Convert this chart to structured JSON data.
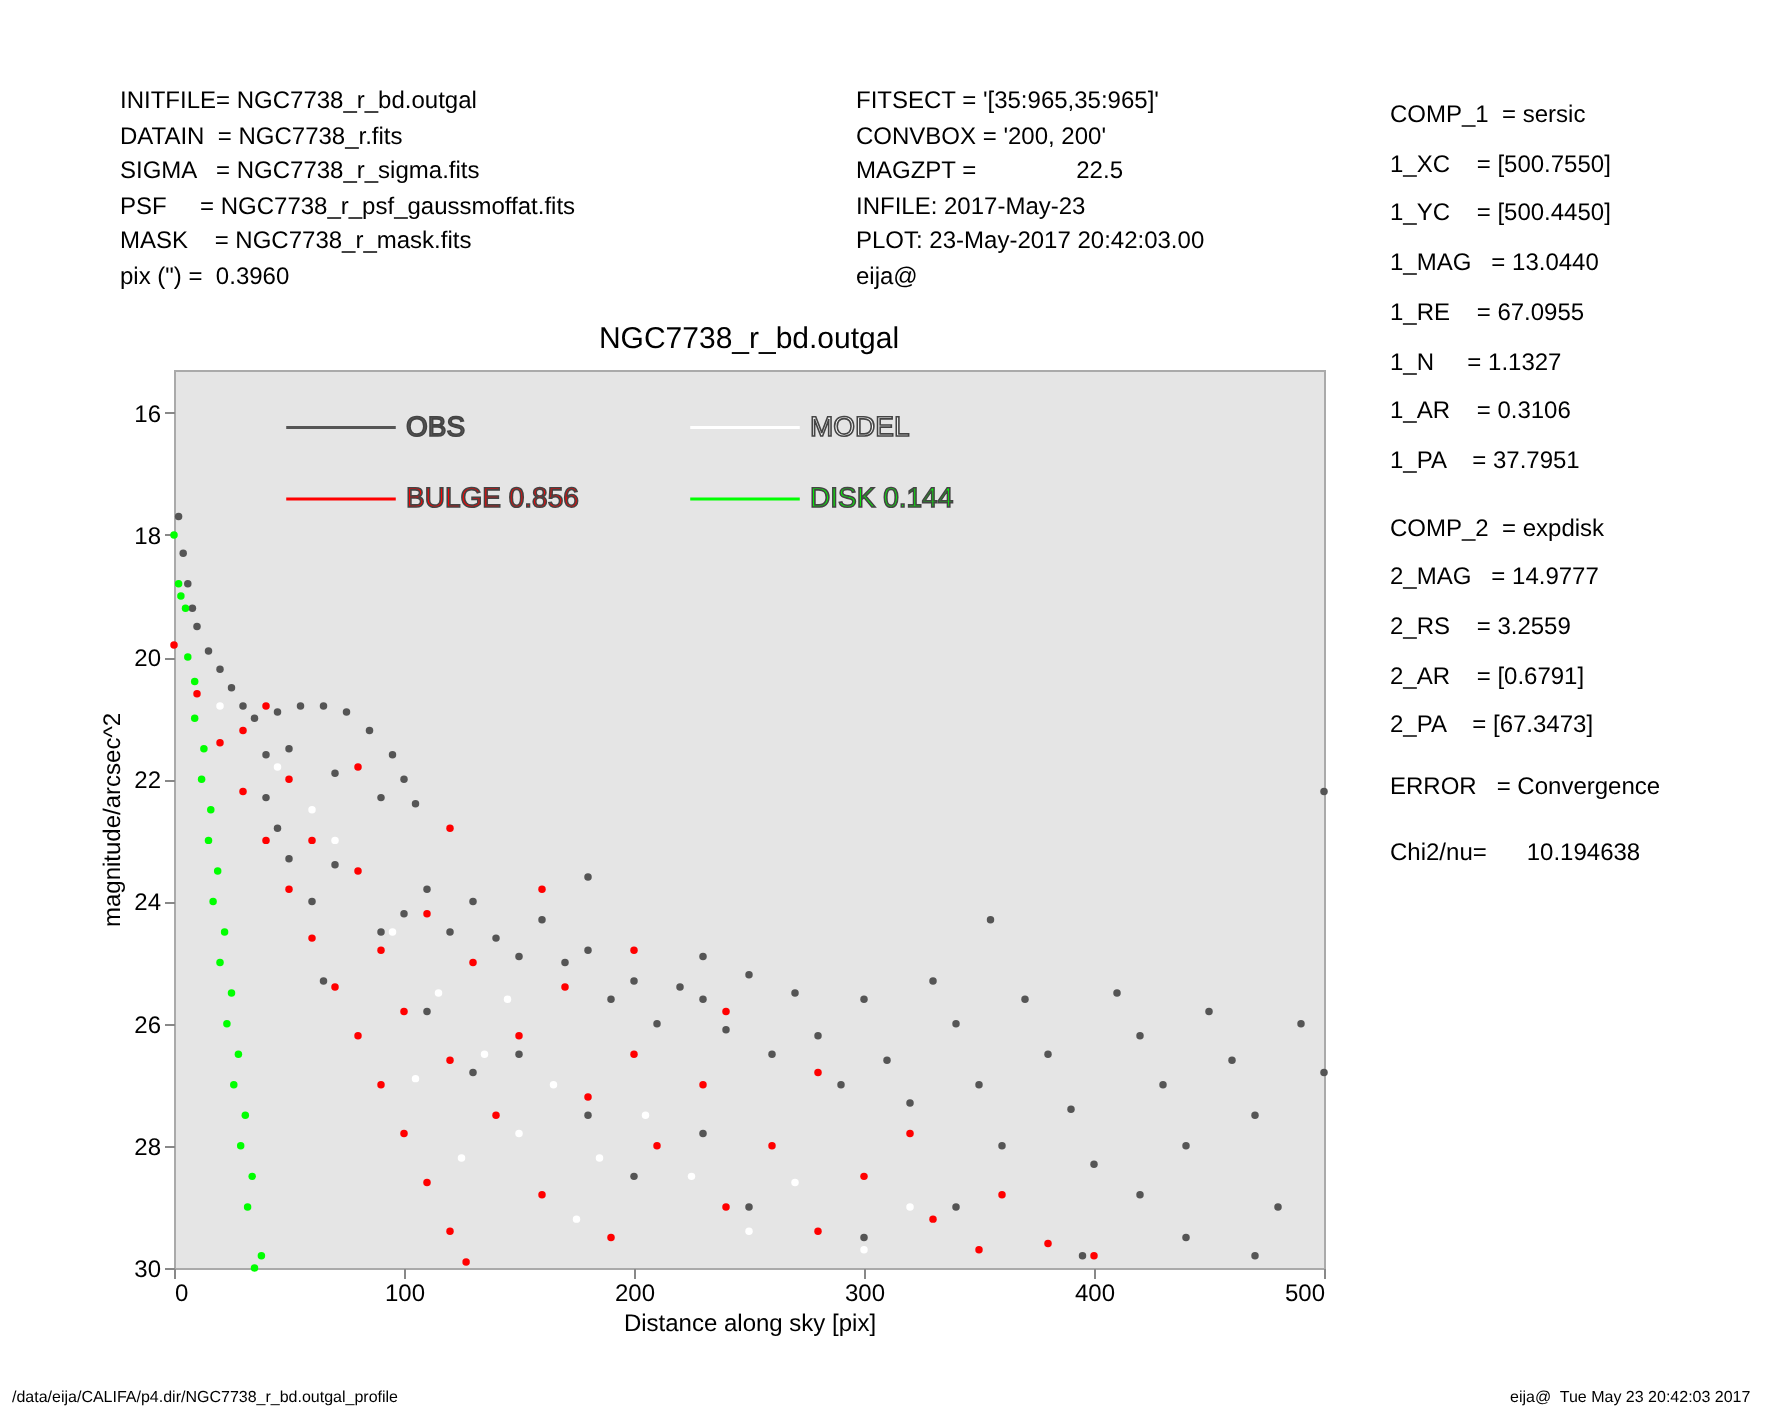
{
  "chart_data": {
    "type": "scatter",
    "title": "NGC7738_r_bd.outgal",
    "xlabel": "Distance along sky [pix]",
    "ylabel": "magnitude/arcsec^2",
    "xlim": [
      0,
      500
    ],
    "ylim": [
      30,
      15.3
    ],
    "xticks": [
      0,
      100,
      200,
      300,
      400,
      500
    ],
    "yticks": [
      16,
      18,
      20,
      22,
      24,
      26,
      28,
      30
    ],
    "grid": false,
    "legend": "top left",
    "marker": "circle",
    "annotations": [
      "INITFILE= NGC7738_r_bd.outgal",
      "DATAIN  = NGC7738_r.fits",
      "SIGMA   = NGC7738_r_sigma.fits",
      "PSF     = NGC7738_r_psf_gaussmoffat.fits",
      "MASK    = NGC7738_r_mask.fits",
      "pix (\") =  0.3960",
      "FITSECT = '[35:965,35:965]'",
      "CONVBOX = '200, 200'",
      "MAGZPT =               22.5",
      "INFILE: 2017-May-23",
      "PLOT: 23-May-2017 20:42:03.00",
      "eija@",
      "COMP_1  = sersic",
      "1_XC    = [500.7550]",
      "1_YC    = [500.4450]",
      "1_MAG   = 13.0440",
      "1_RE    = 67.0955",
      "1_N     = 1.1327",
      "1_AR    = 0.3106",
      "1_PA    = 37.7951",
      "COMP_2  = expdisk",
      "2_MAG   = 14.9777",
      "2_RS    = 3.2559",
      "2_AR    = [0.6791]",
      "2_PA    = [67.3473]",
      "ERROR   = Convergence",
      "Chi2/nu=      10.194638",
      "/data/eija/CALIFA/p4.dir/NGC7738_r_bd.outgal_profile",
      "eija@  Tue May 23 20:42:03 2017"
    ],
    "series": [
      {
        "name": "OBS",
        "color": "#555555",
        "x": [
          2,
          4,
          6,
          8,
          10,
          15,
          20,
          25,
          30,
          35,
          40,
          45,
          55,
          65,
          75,
          85,
          95,
          100,
          105,
          90,
          70,
          50,
          40,
          45,
          50,
          60,
          65,
          70,
          90,
          100,
          110,
          120,
          130,
          140,
          150,
          160,
          170,
          180,
          190,
          200,
          210,
          220,
          230,
          240,
          250,
          260,
          270,
          280,
          290,
          300,
          310,
          320,
          330,
          340,
          350,
          360,
          370,
          380,
          390,
          400,
          410,
          420,
          430,
          440,
          450,
          460,
          470,
          480,
          490,
          500,
          500,
          355,
          440,
          470,
          150,
          180,
          200,
          230,
          250,
          130,
          110,
          340,
          300,
          395,
          420,
          180,
          230
        ],
        "values": [
          17.7,
          18.3,
          18.8,
          19.2,
          19.5,
          19.9,
          20.2,
          20.5,
          20.8,
          21.0,
          21.6,
          20.9,
          20.8,
          20.8,
          20.9,
          21.2,
          21.6,
          22.0,
          22.4,
          22.3,
          21.9,
          21.5,
          22.3,
          22.8,
          23.3,
          24.0,
          25.3,
          23.4,
          24.5,
          24.2,
          23.8,
          24.5,
          24.0,
          24.6,
          24.9,
          24.3,
          25.0,
          24.8,
          25.6,
          25.3,
          26.0,
          25.4,
          25.6,
          26.1,
          25.2,
          26.5,
          25.5,
          26.2,
          27.0,
          25.6,
          26.6,
          27.3,
          25.3,
          26.0,
          27.0,
          28.0,
          25.6,
          26.5,
          27.4,
          28.3,
          25.5,
          26.2,
          27.0,
          28.0,
          25.8,
          26.6,
          27.5,
          29.0,
          26.0,
          26.8,
          22.2,
          24.3,
          29.5,
          29.8,
          26.5,
          27.5,
          28.5,
          27.8,
          29.0,
          26.8,
          25.8,
          29.0,
          29.5,
          29.8,
          28.8,
          23.6,
          24.9
        ]
      },
      {
        "name": "BULGE  0.856",
        "color": "#ff0000",
        "x": [
          0,
          40,
          80,
          120,
          160,
          200,
          240,
          280,
          320,
          360,
          400,
          10,
          20,
          30,
          40,
          50,
          60,
          70,
          80,
          90,
          100,
          110,
          120,
          127,
          30,
          50,
          60,
          80,
          90,
          100,
          110,
          120,
          130,
          140,
          150,
          160,
          170,
          180,
          190,
          200,
          210,
          230,
          240,
          260,
          280,
          300,
          330,
          350,
          380
        ],
        "values": [
          19.8,
          20.8,
          21.8,
          22.8,
          23.8,
          24.8,
          25.8,
          26.8,
          27.8,
          28.8,
          29.8,
          20.6,
          21.4,
          22.2,
          23.0,
          23.8,
          24.6,
          25.4,
          26.2,
          27.0,
          27.8,
          28.6,
          29.4,
          29.9,
          21.2,
          22.0,
          23.0,
          23.5,
          24.8,
          25.8,
          24.2,
          26.6,
          25.0,
          27.5,
          26.2,
          28.8,
          25.4,
          27.2,
          29.5,
          26.5,
          28.0,
          27.0,
          29.0,
          28.0,
          29.4,
          28.5,
          29.2,
          29.7,
          29.6
        ]
      },
      {
        "name": "MODEL",
        "color": "#ffffff",
        "x": [
          20,
          45,
          70,
          95,
          115,
          135,
          150,
          165,
          185,
          205,
          225,
          250,
          270,
          300,
          320,
          145,
          105,
          125,
          175,
          60
        ],
        "values": [
          20.8,
          21.8,
          23.0,
          24.5,
          25.5,
          26.5,
          27.8,
          27.0,
          28.2,
          27.5,
          28.5,
          29.4,
          28.6,
          29.7,
          29.0,
          25.6,
          26.9,
          28.2,
          29.2,
          22.5
        ]
      },
      {
        "name": "DISK  0.144",
        "color": "#00ff00",
        "x": [
          0,
          3,
          6,
          9,
          12,
          15,
          17,
          20,
          23,
          26,
          29,
          32,
          35,
          2,
          5,
          9,
          13,
          16,
          19,
          22,
          25,
          28,
          31,
          34,
          38
        ],
        "values": [
          18.0,
          19.0,
          20.0,
          21.0,
          22.0,
          23.0,
          24.0,
          25.0,
          26.0,
          27.0,
          28.0,
          29.0,
          30.0,
          18.8,
          19.2,
          20.4,
          21.5,
          22.5,
          23.5,
          24.5,
          25.5,
          26.5,
          27.5,
          28.5,
          29.8
        ]
      }
    ]
  }
}
